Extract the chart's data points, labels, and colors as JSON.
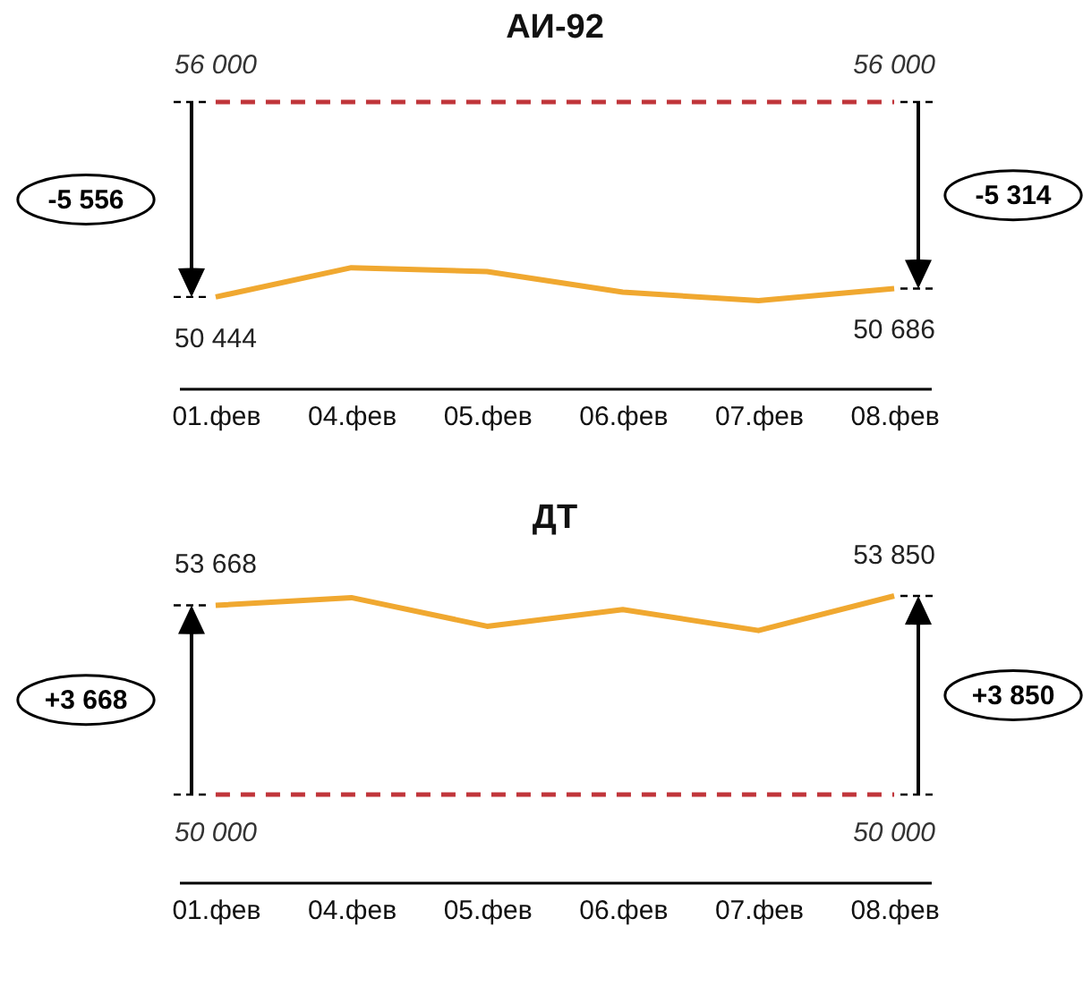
{
  "chart_data": [
    {
      "type": "line",
      "title": "АИ-92",
      "categories": [
        "01.фев",
        "04.фев",
        "05.фев",
        "06.фев",
        "07.фев",
        "08.фев"
      ],
      "values": [
        50444,
        51280,
        51170,
        50580,
        50340,
        50686
      ],
      "color": "#f0a830",
      "tick_labels": "x",
      "ref_lines": [
        {
          "axis": "y",
          "value": 56000,
          "label": "56 000",
          "color": "#c0353a",
          "line_style": "dashed"
        }
      ],
      "value_labels": [
        "50 444",
        null,
        null,
        null,
        null,
        "50 686"
      ],
      "annotations": [
        "-5 556",
        "-5 314"
      ]
    },
    {
      "type": "line",
      "title": "ДТ",
      "categories": [
        "01.фев",
        "04.фев",
        "05.фев",
        "06.фев",
        "07.фев",
        "08.фев"
      ],
      "values": [
        53668,
        53817,
        53262,
        53585,
        53180,
        53850
      ],
      "color": "#f0a830",
      "tick_labels": "x",
      "ref_lines": [
        {
          "axis": "y",
          "value": 50000,
          "label": "50 000",
          "color": "#c0353a",
          "line_style": "dashed"
        }
      ],
      "value_labels": [
        "53 668",
        null,
        null,
        null,
        null,
        "53 850"
      ],
      "annotations": [
        "+3 668",
        "+3 850"
      ]
    }
  ]
}
